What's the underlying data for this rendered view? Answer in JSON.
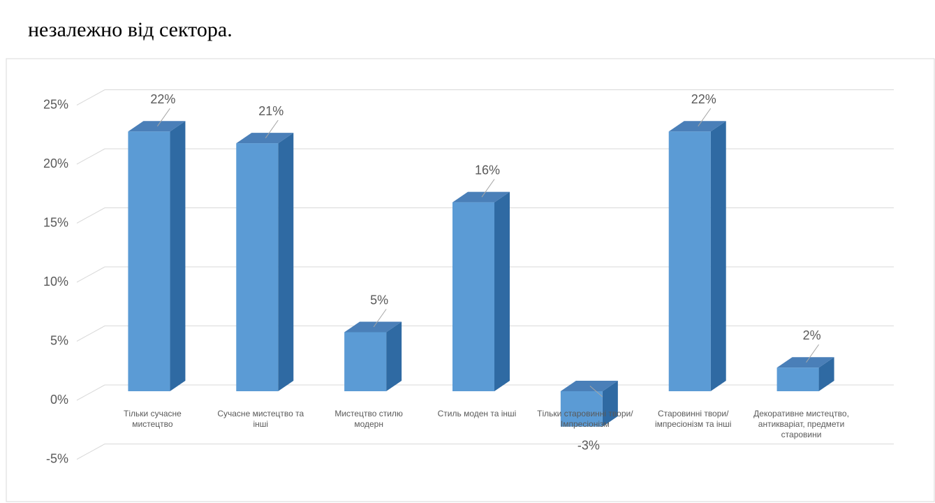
{
  "heading": "незалежно від сектора.",
  "chart_data": {
    "type": "bar3d",
    "categories": [
      "Тільки сучасне мистецтво",
      "Сучасне мистецтво та інші",
      "Мистецтво стилю модерн",
      "Стиль моден та інші",
      "Тільки старовинні твори/Імпресіонізм",
      "Старовинні твори/імпресіонізм та інші",
      "Декоративне мистецтво, антикваріат, предмети старовини"
    ],
    "values": [
      22,
      21,
      5,
      16,
      -3,
      22,
      2
    ],
    "value_labels": [
      "22%",
      "21%",
      "5%",
      "16%",
      "-3%",
      "22%",
      "2%"
    ],
    "color": "#5b9bd5",
    "ylim": [
      -5,
      25
    ],
    "yticks": [
      {
        "value": -5,
        "label": "-5%"
      },
      {
        "value": 0,
        "label": "0%"
      },
      {
        "value": 5,
        "label": "5%"
      },
      {
        "value": 10,
        "label": "10%"
      },
      {
        "value": 15,
        "label": "15%"
      },
      {
        "value": 20,
        "label": "20%"
      },
      {
        "value": 25,
        "label": "25%"
      }
    ],
    "grid": true
  }
}
